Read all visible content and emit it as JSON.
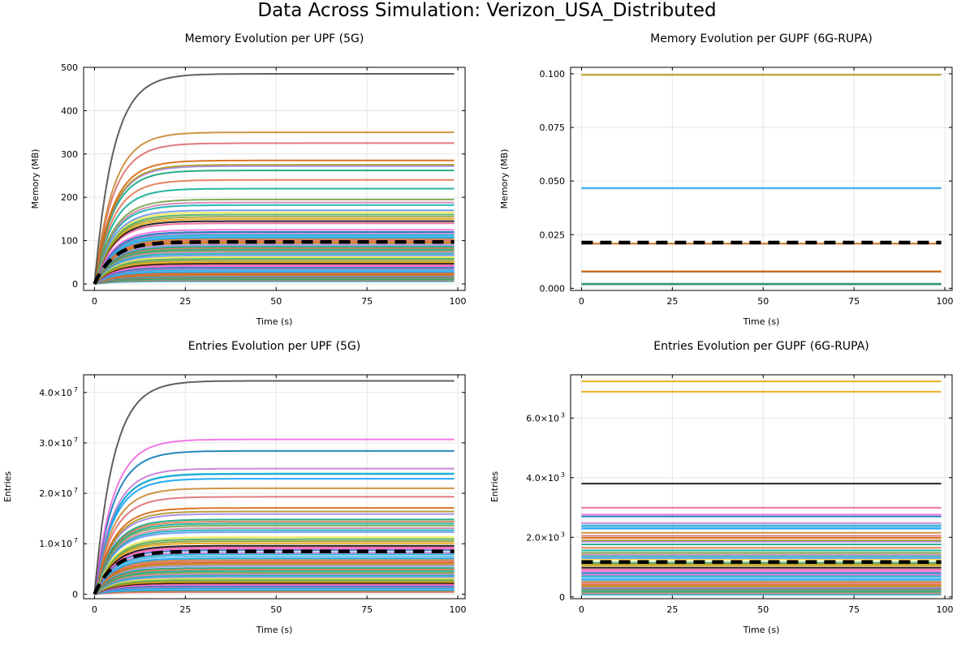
{
  "figure": {
    "title": "Data Across Simulation: Verizon_USA_Distributed"
  },
  "chart_data": [
    {
      "type": "line",
      "title": "Memory Evolution per UPF (5G)",
      "xlabel": "Time (s)",
      "ylabel": "Memory (MB)",
      "xlim": [
        -3,
        102
      ],
      "ylim": [
        -15,
        500
      ],
      "xticks": [
        0,
        25,
        50,
        75,
        100
      ],
      "yticks": [
        0,
        100,
        200,
        300,
        400,
        500
      ],
      "ytick_labels": [
        "0",
        "100",
        "200",
        "300",
        "400",
        "500"
      ],
      "grid": true,
      "legend": "none",
      "curve": "saturating",
      "x_end": 99,
      "mean_line": {
        "style": "dashed",
        "color": "#000000",
        "final": 97
      },
      "series_finals": [
        485,
        350,
        325,
        285,
        275,
        272,
        262,
        240,
        220,
        195,
        188,
        182,
        170,
        165,
        160,
        155,
        150,
        145,
        140,
        125,
        120,
        117,
        113,
        110,
        107,
        104,
        101,
        97,
        94,
        90,
        86,
        83,
        80,
        77,
        74,
        70,
        66,
        62,
        58,
        54,
        50,
        47,
        44,
        41,
        38,
        35,
        33,
        30,
        28,
        26,
        24,
        22,
        20,
        18,
        16,
        14,
        12,
        10,
        8,
        6
      ]
    },
    {
      "type": "line",
      "title": "Memory Evolution per GUPF (6G-RUPA)",
      "xlabel": "Time (s)",
      "ylabel": "Memory (MB)",
      "xlim": [
        -3,
        102
      ],
      "ylim": [
        -0.001,
        0.103
      ],
      "xticks": [
        0,
        25,
        50,
        75,
        100
      ],
      "yticks": [
        0,
        0.025,
        0.05,
        0.075,
        0.1
      ],
      "ytick_labels": [
        "0.000",
        "0.025",
        "0.050",
        "0.075",
        "0.100"
      ],
      "grid": true,
      "legend": "none",
      "curve": "flat",
      "x_end": 99,
      "mean_line": {
        "style": "dashed",
        "color": "#000000",
        "final": 0.0213
      },
      "series_finals": [
        0.0995,
        0.0995,
        0.0468,
        0.0466,
        0.0209,
        0.0208,
        0.0079,
        0.0078,
        0.0077,
        0.0021,
        0.0019,
        0.0018
      ]
    },
    {
      "type": "line",
      "title": "Entries Evolution per UPF (5G)",
      "xlabel": "Time (s)",
      "ylabel": "Entries",
      "xlim": [
        -3,
        102
      ],
      "ylim": [
        -900000,
        43500000
      ],
      "xticks": [
        0,
        25,
        50,
        75,
        100
      ],
      "yticks": [
        0,
        10000000,
        20000000,
        30000000,
        40000000
      ],
      "ytick_labels": [
        "0",
        "1.0×10",
        "2.0×10",
        "3.0×10",
        "4.0×10"
      ],
      "ytick_exponents": [
        "",
        "7",
        "7",
        "7",
        "7"
      ],
      "grid": true,
      "legend": "none",
      "curve": "saturating",
      "x_end": 99,
      "mean_line": {
        "style": "dashed",
        "color": "#000000",
        "final": 8500000
      },
      "series_finals": [
        42300000,
        30700000,
        28400000,
        24900000,
        23900000,
        23800000,
        22900000,
        21000000,
        19300000,
        17100000,
        16400000,
        15900000,
        14800000,
        14400000,
        14000000,
        13600000,
        13100000,
        12700000,
        12300000,
        11300000,
        10900000,
        10500000,
        10100000,
        9600000,
        9300000,
        9000000,
        8700000,
        8200000,
        7900000,
        7500000,
        7100000,
        6800000,
        6500000,
        6200000,
        5900000,
        5600000,
        5200000,
        4900000,
        4600000,
        4300000,
        4000000,
        3700000,
        3400000,
        3100000,
        2900000,
        2600000,
        2400000,
        2200000,
        2000000,
        1800000,
        1600000,
        1400000,
        1200000,
        1000000,
        800000,
        600000,
        400000
      ]
    },
    {
      "type": "line",
      "title": "Entries Evolution per GUPF (6G-RUPA)",
      "xlabel": "Time (s)",
      "ylabel": "Entries",
      "xlim": [
        -3,
        102
      ],
      "ylim": [
        -60,
        7450
      ],
      "xticks": [
        0,
        25,
        50,
        75,
        100
      ],
      "yticks": [
        0,
        2000,
        4000,
        6000
      ],
      "ytick_labels": [
        "0",
        "2.0×10",
        "4.0×10",
        "6.0×10"
      ],
      "ytick_exponents": [
        "",
        "3",
        "3",
        "3"
      ],
      "grid": true,
      "legend": "none",
      "curve": "flat",
      "x_end": 99,
      "mean_line": {
        "style": "dashed",
        "color": "#000000",
        "final": 1170
      },
      "series_finals": [
        7230,
        6880,
        3800,
        2990,
        2760,
        2700,
        2480,
        2400,
        2340,
        2290,
        2150,
        2050,
        1980,
        1900,
        1850,
        1760,
        1650,
        1560,
        1480,
        1420,
        1360,
        1300,
        1250,
        1150,
        1100,
        1050,
        980,
        920,
        860,
        800,
        740,
        690,
        630,
        570,
        510,
        460,
        400,
        350,
        300,
        280,
        250,
        200,
        160,
        120,
        80
      ]
    }
  ],
  "palette": [
    "#009AFA",
    "#E36F47",
    "#3EA44E",
    "#C371D2",
    "#AC8E18",
    "#00AAAE",
    "#ED5E93",
    "#C68225",
    "#00A98D",
    "#8E971E",
    "#00A9CD",
    "#9B7FE9",
    "#618DF6",
    "#F061DD",
    "#DD6466",
    "#6B9F3A",
    "#E69F00",
    "#56B4E9",
    "#009E73",
    "#F0E442",
    "#0072B2",
    "#D55E00",
    "#CC79A7",
    "#000000"
  ]
}
